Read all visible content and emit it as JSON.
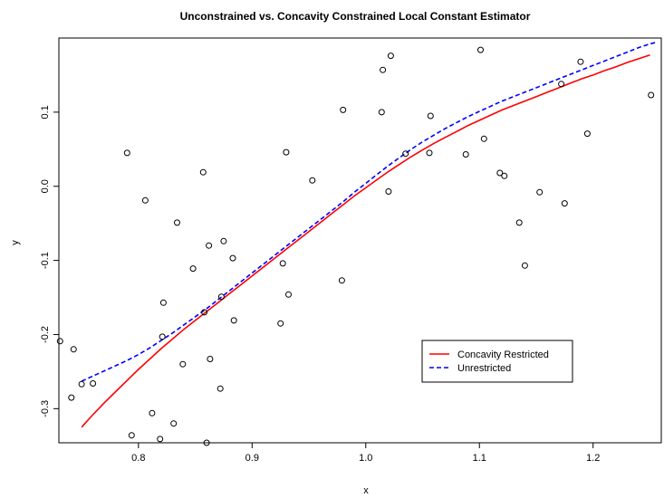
{
  "chart_data": {
    "type": "scatter",
    "title": "Unconstrained vs. Concavity Constrained Local Constant Estimator",
    "xlabel": "x",
    "ylabel": "y",
    "xlim": [
      0.73,
      1.26
    ],
    "ylim": [
      -0.346,
      0.2
    ],
    "xticks": [
      0.8,
      0.9,
      1.0,
      1.1,
      1.2
    ],
    "xtick_labels": [
      "0.8",
      "0.9",
      "1.0",
      "1.1",
      "1.2"
    ],
    "yticks": [
      -0.3,
      -0.2,
      -0.1,
      0.0,
      0.1
    ],
    "ytick_labels": [
      "-0.3",
      "-0.2",
      "-0.1",
      "0.0",
      "0.1"
    ],
    "grid": false,
    "legend_position": "bottom-right",
    "points": [
      [
        0.731,
        -0.209
      ],
      [
        0.741,
        -0.285
      ],
      [
        0.743,
        -0.22
      ],
      [
        0.75,
        -0.267
      ],
      [
        0.76,
        -0.266
      ],
      [
        0.79,
        0.045
      ],
      [
        0.794,
        -0.336
      ],
      [
        0.806,
        -0.019
      ],
      [
        0.812,
        -0.306
      ],
      [
        0.819,
        -0.341
      ],
      [
        0.821,
        -0.203
      ],
      [
        0.822,
        -0.157
      ],
      [
        0.831,
        -0.32
      ],
      [
        0.834,
        -0.049
      ],
      [
        0.839,
        -0.24
      ],
      [
        0.848,
        -0.111
      ],
      [
        0.857,
        0.019
      ],
      [
        0.858,
        -0.17
      ],
      [
        0.86,
        -0.346
      ],
      [
        0.862,
        -0.08
      ],
      [
        0.863,
        -0.233
      ],
      [
        0.872,
        -0.273
      ],
      [
        0.873,
        -0.149
      ],
      [
        0.875,
        -0.074
      ],
      [
        0.883,
        -0.097
      ],
      [
        0.884,
        -0.181
      ],
      [
        0.925,
        -0.185
      ],
      [
        0.927,
        -0.104
      ],
      [
        0.93,
        0.046
      ],
      [
        0.932,
        -0.146
      ],
      [
        0.953,
        0.008
      ],
      [
        0.979,
        -0.127
      ],
      [
        0.98,
        0.103
      ],
      [
        1.014,
        0.1
      ],
      [
        1.015,
        0.157
      ],
      [
        1.02,
        -0.007
      ],
      [
        1.022,
        0.176
      ],
      [
        1.035,
        0.044
      ],
      [
        1.056,
        0.045
      ],
      [
        1.057,
        0.095
      ],
      [
        1.088,
        0.043
      ],
      [
        1.101,
        0.184
      ],
      [
        1.104,
        0.064
      ],
      [
        1.118,
        0.018
      ],
      [
        1.122,
        0.014
      ],
      [
        1.135,
        -0.049
      ],
      [
        1.14,
        -0.107
      ],
      [
        1.153,
        -0.008
      ],
      [
        1.172,
        0.138
      ],
      [
        1.175,
        -0.023
      ],
      [
        1.189,
        0.168
      ],
      [
        1.195,
        0.071
      ],
      [
        1.251,
        0.123
      ]
    ],
    "series": [
      {
        "name": "Concavity Restricted",
        "color": "#ff0000",
        "style": "solid",
        "x": [
          0.75,
          0.76,
          0.77,
          0.78,
          0.79,
          0.8,
          0.81,
          0.82,
          0.83,
          0.84,
          0.85,
          0.86,
          0.87,
          0.88,
          0.89,
          0.9,
          0.91,
          0.92,
          0.93,
          0.94,
          0.95,
          0.96,
          0.97,
          0.98,
          0.99,
          1.0,
          1.01,
          1.02,
          1.03,
          1.04,
          1.05,
          1.06,
          1.07,
          1.08,
          1.09,
          1.1,
          1.11,
          1.12,
          1.13,
          1.14,
          1.15,
          1.16,
          1.17,
          1.18,
          1.19,
          1.2,
          1.21,
          1.22,
          1.23,
          1.24,
          1.25
        ],
        "y": [
          -0.325,
          -0.308,
          -0.292,
          -0.277,
          -0.262,
          -0.247,
          -0.233,
          -0.219,
          -0.206,
          -0.193,
          -0.181,
          -0.169,
          -0.157,
          -0.145,
          -0.133,
          -0.121,
          -0.109,
          -0.097,
          -0.085,
          -0.073,
          -0.061,
          -0.049,
          -0.037,
          -0.025,
          -0.013,
          -0.002,
          0.009,
          0.02,
          0.03,
          0.04,
          0.049,
          0.058,
          0.066,
          0.074,
          0.082,
          0.089,
          0.096,
          0.103,
          0.109,
          0.115,
          0.121,
          0.127,
          0.133,
          0.139,
          0.145,
          0.15,
          0.156,
          0.161,
          0.167,
          0.172,
          0.177
        ]
      },
      {
        "name": "Unrestricted",
        "color": "#0000ff",
        "style": "dashed",
        "x": [
          0.75,
          0.76,
          0.77,
          0.78,
          0.79,
          0.8,
          0.81,
          0.82,
          0.83,
          0.84,
          0.85,
          0.86,
          0.87,
          0.88,
          0.89,
          0.9,
          0.91,
          0.92,
          0.93,
          0.94,
          0.95,
          0.96,
          0.97,
          0.98,
          0.99,
          1.0,
          1.01,
          1.02,
          1.03,
          1.04,
          1.05,
          1.06,
          1.07,
          1.08,
          1.09,
          1.1,
          1.11,
          1.12,
          1.13,
          1.14,
          1.15,
          1.16,
          1.17,
          1.18,
          1.19,
          1.2,
          1.21,
          1.22,
          1.23,
          1.24,
          1.25,
          1.255
        ],
        "y": [
          -0.263,
          -0.256,
          -0.249,
          -0.242,
          -0.235,
          -0.227,
          -0.218,
          -0.208,
          -0.198,
          -0.187,
          -0.176,
          -0.165,
          -0.153,
          -0.141,
          -0.129,
          -0.117,
          -0.105,
          -0.093,
          -0.081,
          -0.069,
          -0.057,
          -0.045,
          -0.033,
          -0.021,
          -0.008,
          0.004,
          0.016,
          0.028,
          0.039,
          0.05,
          0.06,
          0.069,
          0.078,
          0.086,
          0.094,
          0.101,
          0.108,
          0.115,
          0.121,
          0.127,
          0.133,
          0.139,
          0.145,
          0.151,
          0.157,
          0.163,
          0.169,
          0.175,
          0.181,
          0.187,
          0.192,
          0.194
        ]
      }
    ]
  }
}
